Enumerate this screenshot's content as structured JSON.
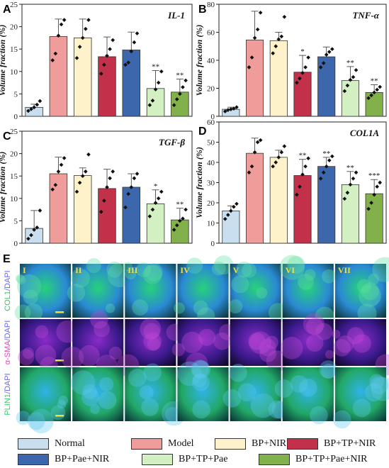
{
  "colors": {
    "groups": [
      "#c9dff0",
      "#ef9c9a",
      "#fdf2c9",
      "#c2304a",
      "#3d67ad",
      "#d3f0c2",
      "#82b04a"
    ],
    "error_bar": "#333333",
    "point": "#111111"
  },
  "legend": {
    "items": [
      "Normal",
      "Model",
      "BP+NIR",
      "BP+TP+NIR",
      "BP+Pae+NIR",
      "BP+TP+Pae",
      "BP+TP+Pae+NIR"
    ]
  },
  "panel_e": {
    "letter": "E",
    "columns": [
      "I",
      "II",
      "III",
      "IV",
      "V",
      "VI",
      "VII"
    ],
    "rows": [
      {
        "stain": "COL1",
        "counter": "/DAPI",
        "stain_color": "#33cc66",
        "counter_color": "#6666ff"
      },
      {
        "stain": "α-SMA",
        "counter": "/DAPI",
        "stain_color": "#ff33cc",
        "counter_color": "#6666ff"
      },
      {
        "stain": "PLIN1",
        "counter": "/DAPI",
        "stain_color": "#33cc66",
        "counter_color": "#6666ff"
      }
    ]
  },
  "chart_data": [
    {
      "panel": "A",
      "type": "bar",
      "title": "IL-1",
      "ylabel": "Volume fraction (%)",
      "categories": [
        "Normal",
        "Model",
        "BP+NIR",
        "BP+TP+NIR",
        "BP+Pae+NIR",
        "BP+TP+Pae",
        "BP+TP+Pae+NIR"
      ],
      "values": [
        2.0,
        17.8,
        17.5,
        13.3,
        14.8,
        6.2,
        5.4
      ],
      "errors": [
        0.7,
        3.9,
        4.2,
        4.4,
        4.0,
        4.0,
        2.9
      ],
      "points": [
        [
          1.2,
          1.6,
          2.0,
          2.6,
          3.4
        ],
        [
          12.5,
          14.0,
          18.0,
          20.5,
          21.5
        ],
        [
          13.0,
          15.5,
          17.5,
          19.5,
          21.5
        ],
        [
          9.5,
          11.5,
          13.5,
          15.0,
          17.0
        ],
        [
          11.5,
          12.0,
          14.5,
          16.5,
          18.5
        ],
        [
          2.5,
          3.5,
          6.0,
          7.5,
          10.0
        ],
        [
          2.5,
          3.8,
          5.0,
          6.5,
          8.0
        ]
      ],
      "significance": [
        "",
        "",
        "",
        "",
        "",
        "**",
        "**"
      ],
      "ylim": [
        0,
        25
      ],
      "yticks": [
        0,
        5,
        10,
        15,
        20,
        25
      ]
    },
    {
      "panel": "B",
      "type": "bar",
      "title": "TNF-α",
      "ylabel": "Volume fraction (%)",
      "categories": [
        "Normal",
        "Model",
        "BP+NIR",
        "BP+TP+NIR",
        "BP+Pae+NIR",
        "BP+TP+Pae",
        "BP+TP+Pae+NIR"
      ],
      "values": [
        5.0,
        54.5,
        54.0,
        31.5,
        42.5,
        25.5,
        17.0
      ],
      "errors": [
        1.5,
        20.5,
        6.0,
        12.0,
        7.0,
        10.0,
        5.5
      ],
      "points": [
        [
          3.5,
          4.5,
          5.0,
          5.5,
          6.5
        ],
        [
          35.0,
          42.0,
          56.0,
          62.0,
          74.0
        ],
        [
          45.0,
          50.0,
          55.0,
          57.0,
          71.0
        ],
        [
          24.0,
          27.0,
          31.0,
          35.0,
          42.0
        ],
        [
          35.0,
          38.0,
          44.0,
          46.0,
          48.0
        ],
        [
          18.0,
          22.0,
          26.0,
          28.0,
          33.0
        ],
        [
          13.0,
          15.0,
          17.0,
          19.0,
          21.0
        ]
      ],
      "significance": [
        "",
        "",
        "",
        "*",
        "",
        "**",
        "**"
      ],
      "ylim": [
        0,
        80
      ],
      "yticks": [
        0,
        20,
        40,
        60,
        80
      ]
    },
    {
      "panel": "C",
      "type": "bar",
      "title": "TGF-β",
      "ylabel": "Volume fraction (%)",
      "categories": [
        "Normal",
        "Model",
        "BP+NIR",
        "BP+TP+NIR",
        "BP+Pae+NIR",
        "BP+TP+Pae",
        "BP+TP+Pae+NIR"
      ],
      "values": [
        3.3,
        15.5,
        15.1,
        12.2,
        12.5,
        8.8,
        5.2
      ],
      "errors": [
        4.0,
        3.7,
        1.7,
        4.3,
        3.0,
        3.1,
        2.6
      ],
      "points": [
        [
          1.0,
          1.8,
          3.0,
          3.5,
          7.3
        ],
        [
          12.0,
          13.0,
          16.0,
          17.5,
          19.0
        ],
        [
          11.5,
          13.5,
          15.0,
          16.0,
          19.8
        ],
        [
          7.0,
          9.5,
          12.5,
          14.5,
          16.0
        ],
        [
          8.0,
          11.0,
          12.5,
          14.5,
          15.5
        ],
        [
          6.0,
          7.5,
          9.0,
          10.0,
          11.5
        ],
        [
          3.0,
          4.0,
          5.0,
          5.5,
          7.5
        ]
      ],
      "significance": [
        "",
        "",
        "",
        "",
        "",
        "*",
        "**"
      ],
      "ylim": [
        0,
        25
      ],
      "yticks": [
        0,
        5,
        10,
        15,
        20,
        25
      ]
    },
    {
      "panel": "D",
      "type": "bar",
      "title": "COL1A",
      "ylabel": "Volume fraction (%)",
      "categories": [
        "Normal",
        "Model",
        "BP+NIR",
        "BP+TP+NIR",
        "BP+Pae+NIR",
        "BP+TP+Pae",
        "BP+TP+Pae+NIR"
      ],
      "values": [
        16.0,
        44.5,
        42.5,
        33.5,
        38.0,
        29.0,
        24.5
      ],
      "errors": [
        2.5,
        7.5,
        3.5,
        8.0,
        4.5,
        6.5,
        7.0
      ],
      "points": [
        [
          12.0,
          14.0,
          16.0,
          18.0,
          19.5
        ],
        [
          35.0,
          38.0,
          45.0,
          50.0,
          51.0
        ],
        [
          38.0,
          40.0,
          42.5,
          45.0,
          48.0
        ],
        [
          24.0,
          28.0,
          34.0,
          38.0,
          42.0
        ],
        [
          32.0,
          35.0,
          38.0,
          41.0,
          43.0
        ],
        [
          22.0,
          25.0,
          29.0,
          32.0,
          35.0
        ],
        [
          17.0,
          20.0,
          24.0,
          28.0,
          30.0
        ]
      ],
      "significance": [
        "",
        "",
        "",
        "**",
        "**",
        "**",
        "***"
      ],
      "ylim": [
        0,
        60
      ],
      "yticks": [
        0,
        10,
        20,
        30,
        40,
        50,
        60
      ]
    }
  ]
}
